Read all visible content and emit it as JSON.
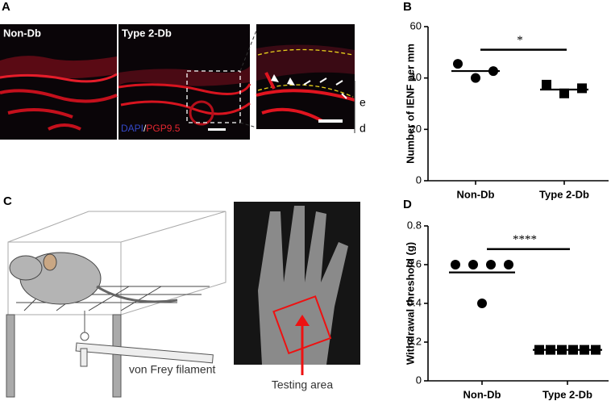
{
  "panel_labels": [
    "A",
    "B",
    "C",
    "D"
  ],
  "panel_a": {
    "labels": [
      "Non-Db",
      "Type 2-Db"
    ],
    "stain": [
      "DAPI",
      "/",
      "PGP9.5"
    ],
    "layers": [
      "e",
      "d"
    ]
  },
  "panel_c": {
    "filament_label": "von Frey filament",
    "area_label": "Testing area"
  },
  "chart_data": [
    {
      "type": "dot",
      "y_label": "Number of IENF per mm",
      "categories": [
        "Non-Db",
        "Type 2-Db"
      ],
      "points": [
        [
          45.5,
          40,
          42.7
        ],
        [
          37.4,
          34,
          36
        ]
      ],
      "means": [
        42.7,
        35.5
      ],
      "markers": [
        "circle",
        "square"
      ],
      "color": "#000000",
      "significance": "*",
      "ylim": [
        0,
        60
      ],
      "yticks": [
        0,
        20,
        40,
        60
      ]
    },
    {
      "type": "dot",
      "y_label": "Withdrawal threshold (g)",
      "categories": [
        "Non-Db",
        "Type 2-Db"
      ],
      "points": [
        [
          0.6,
          0.6,
          0.6,
          0.6,
          0.4
        ],
        [
          0.16,
          0.16,
          0.16,
          0.16,
          0.16,
          0.16
        ]
      ],
      "means": [
        0.56,
        0.16
      ],
      "markers": [
        "circle",
        "square"
      ],
      "color": "#000000",
      "significance": "****",
      "ylim": [
        0,
        0.8
      ],
      "yticks": [
        0,
        0.2,
        0.4,
        0.6,
        0.8
      ]
    }
  ]
}
